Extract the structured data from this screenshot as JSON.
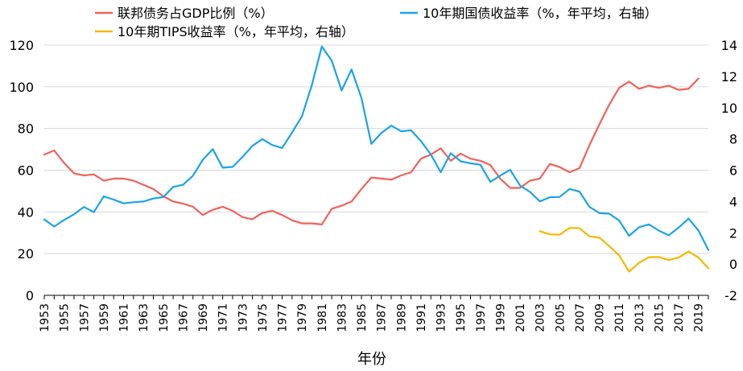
{
  "chart_data": {
    "type": "line",
    "xlabel": "年份",
    "ylabel": "",
    "y2label": "",
    "ylim": [
      0,
      120
    ],
    "y2lim": [
      -2,
      14
    ],
    "yticks": [
      0,
      20,
      40,
      60,
      80,
      100,
      120
    ],
    "y2ticks": [
      -2,
      0,
      2,
      4,
      6,
      8,
      10,
      12,
      14
    ],
    "xlim": [
      1953,
      2020
    ],
    "xticks": [
      "1953",
      "1955",
      "1957",
      "1959",
      "1961",
      "1963",
      "1965",
      "1967",
      "1969",
      "1971",
      "1973",
      "1975",
      "1977",
      "1979",
      "1981",
      "1983",
      "1985",
      "1987",
      "1989",
      "1991",
      "1993",
      "1995",
      "1997",
      "1999",
      "2001",
      "2003",
      "2005",
      "2007",
      "2009",
      "2011",
      "2013",
      "2015",
      "2017",
      "2019"
    ],
    "grid": "horizontal",
    "legend_position": "top",
    "series": [
      {
        "name": "联邦债务占GDP比例（%）",
        "axis": "left",
        "color": "#f0625a",
        "x": [
          1953,
          1954,
          1955,
          1956,
          1957,
          1958,
          1959,
          1960,
          1961,
          1962,
          1963,
          1964,
          1965,
          1966,
          1967,
          1968,
          1969,
          1970,
          1971,
          1972,
          1973,
          1974,
          1975,
          1976,
          1977,
          1978,
          1979,
          1980,
          1981,
          1982,
          1983,
          1984,
          1985,
          1986,
          1987,
          1988,
          1989,
          1990,
          1991,
          1992,
          1993,
          1994,
          1995,
          1996,
          1997,
          1998,
          1999,
          2000,
          2001,
          2002,
          2003,
          2004,
          2005,
          2006,
          2007,
          2008,
          2009,
          2010,
          2011,
          2012,
          2013,
          2014,
          2015,
          2016,
          2017,
          2018,
          2019,
          2020
        ],
        "values": [
          67.5,
          69.5,
          63.5,
          58.5,
          57.5,
          58,
          55,
          56,
          56,
          55,
          53,
          51,
          47.5,
          45,
          44,
          42.5,
          38.5,
          41,
          42.5,
          40.5,
          37.5,
          36.5,
          39.5,
          40.5,
          38.5,
          36,
          34.5,
          34.5,
          34,
          41.5,
          43,
          45,
          51,
          56.5,
          56,
          55.5,
          57.5,
          59,
          65.5,
          67.5,
          70.5,
          64.5,
          68,
          65.5,
          64.5,
          62.5,
          56,
          51.5,
          51.5,
          55,
          56,
          63,
          61.5,
          59,
          61,
          72,
          82,
          91.5,
          99.5,
          102.5,
          99,
          100.5,
          99.5,
          100.5,
          98.5,
          99,
          104,
          null
        ]
      },
      {
        "name": "10年期国债收益率（%，年平均，右轴）",
        "axis": "right",
        "color": "#1aa3e8",
        "x": [
          1953,
          1954,
          1955,
          1956,
          1957,
          1958,
          1959,
          1960,
          1961,
          1962,
          1963,
          1964,
          1965,
          1966,
          1967,
          1968,
          1969,
          1970,
          1971,
          1972,
          1973,
          1974,
          1975,
          1976,
          1977,
          1978,
          1979,
          1980,
          1981,
          1982,
          1983,
          1984,
          1985,
          1986,
          1987,
          1988,
          1989,
          1990,
          1991,
          1992,
          1993,
          1994,
          1995,
          1996,
          1997,
          1998,
          1999,
          2000,
          2001,
          2002,
          2003,
          2004,
          2005,
          2006,
          2007,
          2008,
          2009,
          2010,
          2011,
          2012,
          2013,
          2014,
          2015,
          2016,
          2017,
          2018,
          2019,
          2020
        ],
        "values": [
          2.85,
          2.4,
          2.82,
          3.18,
          3.65,
          3.32,
          4.33,
          4.12,
          3.88,
          3.95,
          4.0,
          4.19,
          4.28,
          4.93,
          5.07,
          5.65,
          6.67,
          7.35,
          6.16,
          6.21,
          6.85,
          7.56,
          7.99,
          7.61,
          7.42,
          8.41,
          9.44,
          11.46,
          13.91,
          13.0,
          11.1,
          12.44,
          10.62,
          7.68,
          8.38,
          8.85,
          8.49,
          8.55,
          7.86,
          7.01,
          5.87,
          7.09,
          6.57,
          6.44,
          6.35,
          5.26,
          5.65,
          6.03,
          5.02,
          4.61,
          4.01,
          4.27,
          4.29,
          4.8,
          4.63,
          3.66,
          3.26,
          3.22,
          2.78,
          1.8,
          2.35,
          2.54,
          2.14,
          1.84,
          2.33,
          2.91,
          2.14,
          0.89
        ]
      },
      {
        "name": "10年期TIPS收益率（%，年平均，右轴）",
        "axis": "right",
        "color": "#f5b800",
        "x": [
          2003,
          2004,
          2005,
          2006,
          2007,
          2008,
          2009,
          2010,
          2011,
          2012,
          2013,
          2014,
          2015,
          2016,
          2017,
          2018,
          2019,
          2020
        ],
        "values": [
          2.1,
          1.9,
          1.88,
          2.31,
          2.29,
          1.77,
          1.69,
          1.15,
          0.55,
          -0.48,
          0.08,
          0.44,
          0.45,
          0.26,
          0.42,
          0.8,
          0.42,
          -0.27
        ]
      }
    ]
  }
}
